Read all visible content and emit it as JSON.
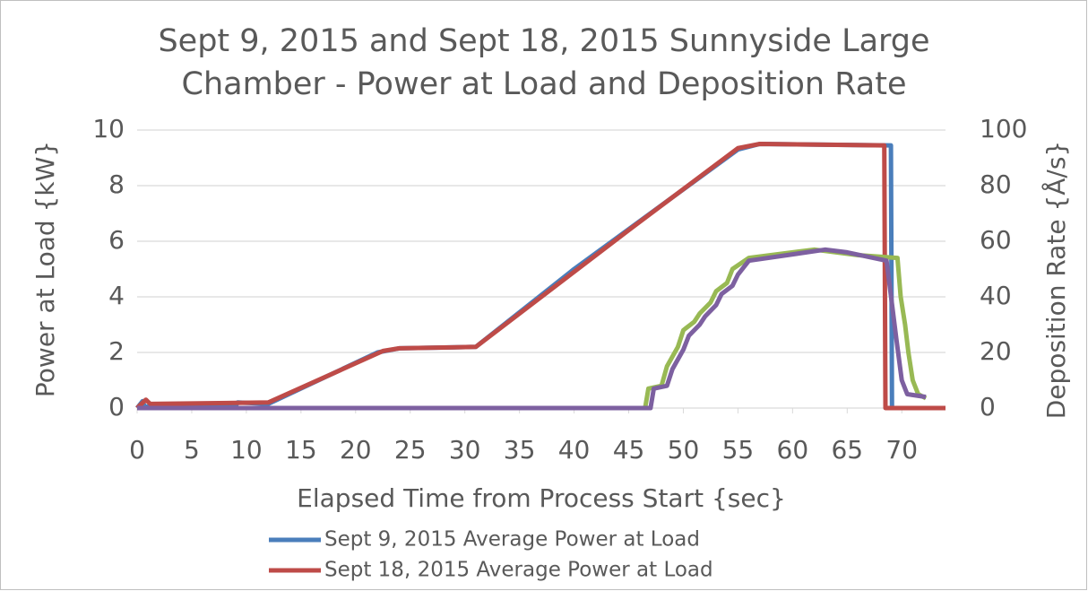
{
  "chart_data": {
    "type": "line",
    "title": "Sept 9, 2015 and Sept 18, 2015 Sunnyside Large Chamber - Power at Load and Deposition Rate",
    "x_label": "Elapsed Time from Process Start {sec}",
    "y_label": "Power at Load {kW}",
    "y2_label": "Deposition Rate {Å/s}",
    "xlim": [
      0,
      74
    ],
    "xticks": [
      0,
      5,
      10,
      15,
      20,
      25,
      30,
      35,
      40,
      45,
      50,
      55,
      60,
      65,
      70
    ],
    "ylim": [
      0,
      10
    ],
    "yticks": [
      0,
      2,
      4,
      6,
      8,
      10
    ],
    "y2lim": [
      0,
      100
    ],
    "y2ticks": [
      0,
      20,
      40,
      60,
      80,
      100
    ],
    "grid": true,
    "series": [
      {
        "name": "Sept 9, 2015 Average Power at Load",
        "color": "#4a7ebb",
        "x": [
          0,
          0.5,
          0.7,
          9,
          9.2,
          12,
          22,
          24,
          31,
          40,
          55,
          57,
          68.9,
          69,
          69.1
        ],
        "values": [
          0,
          0.25,
          0.05,
          0.05,
          0.2,
          0.15,
          2.0,
          2.15,
          2.2,
          5.0,
          9.3,
          9.5,
          9.45,
          9.45,
          0
        ]
      },
      {
        "name": "Sept 18, 2015 Average Power at Load",
        "color": "#be4b48",
        "x": [
          0,
          0.8,
          1.2,
          12,
          22.5,
          24,
          31,
          45,
          55,
          57,
          68.4,
          68.5,
          74
        ],
        "values": [
          0,
          0.3,
          0.15,
          0.2,
          2.05,
          2.15,
          2.2,
          6.4,
          9.35,
          9.5,
          9.45,
          0,
          0
        ]
      },
      {
        "color": "#98b954",
        "axis": "y2",
        "x": [
          0,
          46.5,
          46.8,
          48,
          48.5,
          49.5,
          50,
          51,
          51.5,
          52.5,
          53,
          54,
          54.5,
          56,
          62,
          66,
          69.6,
          69.9,
          70.3,
          70.6,
          71,
          71.5,
          72.2
        ],
        "values": [
          0,
          0,
          7,
          8,
          15,
          22,
          28,
          31,
          34,
          38,
          42,
          45,
          50,
          54,
          57,
          55,
          54,
          40,
          30,
          20,
          10,
          5,
          3.5
        ]
      },
      {
        "color": "#7d60a0",
        "axis": "y2",
        "x": [
          0,
          47,
          47.3,
          48.5,
          49,
          50,
          50.5,
          51.5,
          52,
          53,
          53.5,
          54.5,
          55,
          56,
          63,
          65,
          68.6,
          69.5,
          70,
          70.5,
          72.2
        ],
        "values": [
          0,
          0,
          7,
          8,
          14,
          21,
          26,
          30,
          33,
          37,
          41,
          44,
          48,
          53,
          57,
          56,
          53,
          25,
          10,
          5,
          4
        ]
      }
    ]
  }
}
